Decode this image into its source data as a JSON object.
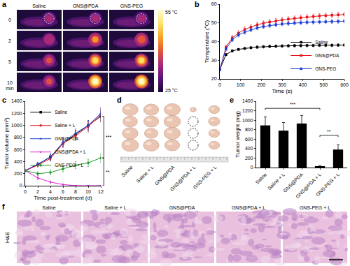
{
  "panel_labels": [
    "a",
    "b",
    "c",
    "d",
    "e",
    "f"
  ],
  "thermal_images": {
    "groups": [
      "Saline",
      "GNS@PDA",
      "GNS-PEG"
    ],
    "times": [
      "0",
      "2",
      "5",
      "10"
    ],
    "time_unit": "min",
    "colorbar": {
      "max_label": "55 °C",
      "min_label": "25 °C"
    }
  },
  "chart_data": [
    {
      "type": "line",
      "x_label": "Time (s)",
      "y_label": "Temperature (°C)",
      "x": [
        0,
        30,
        60,
        90,
        120,
        150,
        180,
        210,
        240,
        270,
        300,
        330,
        360,
        390,
        420,
        450,
        480,
        510,
        540,
        570,
        600
      ],
      "series": [
        {
          "name": "Saline",
          "color": "#000000",
          "marker": "square",
          "values": [
            25,
            33,
            35,
            35.8,
            36.3,
            36.7,
            37,
            37.2,
            37.4,
            37.5,
            37.6,
            37.7,
            37.8,
            37.8,
            37.9,
            37.9,
            38,
            38,
            38,
            38.1,
            38.1
          ],
          "errors": [
            0.3,
            0.6,
            0.6,
            0.6,
            0.6,
            0.6,
            0.7,
            0.7,
            0.7,
            0.7,
            0.7,
            0.7,
            0.7,
            0.7,
            0.7,
            0.7,
            0.7,
            0.7,
            0.7,
            0.7,
            0.7
          ]
        },
        {
          "name": "GNS@PDA",
          "color": "#e8141c",
          "marker": "square",
          "values": [
            25,
            37,
            42,
            44.5,
            46.5,
            47.8,
            49,
            49.8,
            50.5,
            51,
            51.6,
            52,
            52.4,
            52.8,
            53.1,
            53.4,
            53.7,
            53.9,
            54.1,
            54.3,
            54.5
          ],
          "errors": [
            0.3,
            1.2,
            1.3,
            1.3,
            1.3,
            1.3,
            1.3,
            1.3,
            1.3,
            1.3,
            1.3,
            1.3,
            1.3,
            1.3,
            1.3,
            1.3,
            1.3,
            1.3,
            1.3,
            1.3,
            1.3
          ]
        },
        {
          "name": "GNS-PEG",
          "color": "#1f3fd6",
          "marker": "square",
          "values": [
            25,
            36,
            41,
            43.5,
            45,
            46.3,
            47.3,
            48,
            48.6,
            49,
            49.4,
            49.7,
            49.9,
            50.1,
            50.3,
            50.4,
            50.5,
            50.6,
            50.7,
            50.8,
            50.9
          ],
          "errors": [
            0.3,
            1,
            1,
            1,
            1,
            1,
            1,
            1,
            1,
            1,
            1,
            1,
            1,
            1,
            1,
            1,
            1,
            1,
            1,
            1,
            1
          ]
        }
      ],
      "xlim": [
        0,
        600
      ],
      "xticks": [
        0,
        100,
        200,
        300,
        400,
        500,
        600
      ],
      "ylim": [
        20,
        60
      ],
      "yticks": [
        20,
        30,
        40,
        50,
        60
      ],
      "grid": false,
      "legend": "lower right"
    },
    {
      "type": "line",
      "x_label": "Time post-treatment (d)",
      "y_label": "Tumor volume (mm³)",
      "x": [
        0,
        2,
        4,
        6,
        8,
        10,
        12
      ],
      "series": [
        {
          "name": "Saline",
          "color": "#000000",
          "marker": "square",
          "values": [
            250,
            350,
            480,
            700,
            850,
            1000,
            1150
          ],
          "errors": [
            10,
            30,
            50,
            60,
            70,
            80,
            90
          ]
        },
        {
          "name": "Saline + L",
          "color": "#e8141c",
          "marker": "circle",
          "values": [
            250,
            340,
            450,
            700,
            830,
            980,
            1180
          ],
          "errors": [
            10,
            30,
            40,
            60,
            80,
            90,
            100
          ]
        },
        {
          "name": "GNS@PDA",
          "color": "#1f3fd6",
          "marker": "triangle-up",
          "values": [
            250,
            360,
            470,
            720,
            870,
            1000,
            1200
          ],
          "errors": [
            10,
            30,
            50,
            70,
            70,
            80,
            90
          ]
        },
        {
          "name": "GNS@PDA + L",
          "color": "#e020d8",
          "marker": "triangle-down",
          "values": [
            250,
            130,
            60,
            20,
            0,
            0,
            0
          ],
          "errors": [
            10,
            30,
            20,
            10,
            0,
            0,
            0
          ]
        },
        {
          "name": "GNS-PEG + L",
          "color": "#1f9a2a",
          "marker": "diamond",
          "values": [
            250,
            200,
            220,
            280,
            340,
            380,
            460
          ],
          "errors": [
            10,
            30,
            40,
            50,
            60,
            60,
            70
          ]
        }
      ],
      "xlim": [
        0,
        12
      ],
      "xticks": [
        0,
        2,
        4,
        6,
        8,
        10,
        12
      ],
      "ylim": [
        0,
        1400
      ],
      "yticks": [
        0,
        200,
        400,
        600,
        800,
        1000,
        1200,
        1400
      ],
      "grid": false,
      "legend": "upper left",
      "significance": [
        {
          "text": "***",
          "between": [
            "Saline",
            "GNS-PEG + L"
          ]
        },
        {
          "text": "**",
          "between": [
            "GNS-PEG + L",
            "GNS@PDA + L"
          ]
        }
      ]
    },
    {
      "type": "bar",
      "y_label": "Tumor weight (mg)",
      "color": "#000000",
      "categories": [
        "Saline",
        "Saline + L",
        "GNS@PDA",
        "GNS@PDA + L",
        "GNS-PEG + L"
      ],
      "values": [
        890,
        780,
        930,
        20,
        380
      ],
      "errors": [
        180,
        170,
        170,
        20,
        100
      ],
      "ylim": [
        0,
        1400
      ],
      "yticks": [
        0,
        200,
        400,
        600,
        800,
        1000,
        1200,
        1400
      ],
      "grid": false,
      "significance": [
        {
          "text": "***",
          "between": [
            "Saline",
            "GNS@PDA + L"
          ],
          "y": 1250
        },
        {
          "text": "**",
          "between": [
            "GNS@PDA + L",
            "GNS-PEG + L"
          ],
          "y": 680
        }
      ]
    }
  ],
  "tumor_photos": {
    "groups": [
      "Saline",
      "Saline + L",
      "GNS@PDA",
      "GNS@PDA + L",
      "GNS-PEG + L"
    ],
    "replicates": 4,
    "visible_tumors": [
      4,
      4,
      4,
      1,
      4
    ]
  },
  "histology": {
    "stain": "H&E",
    "groups": [
      "Saline",
      "Saline + L",
      "GNS@PDA",
      "GNS@PDA + L",
      "GNS-PEG + L"
    ]
  }
}
